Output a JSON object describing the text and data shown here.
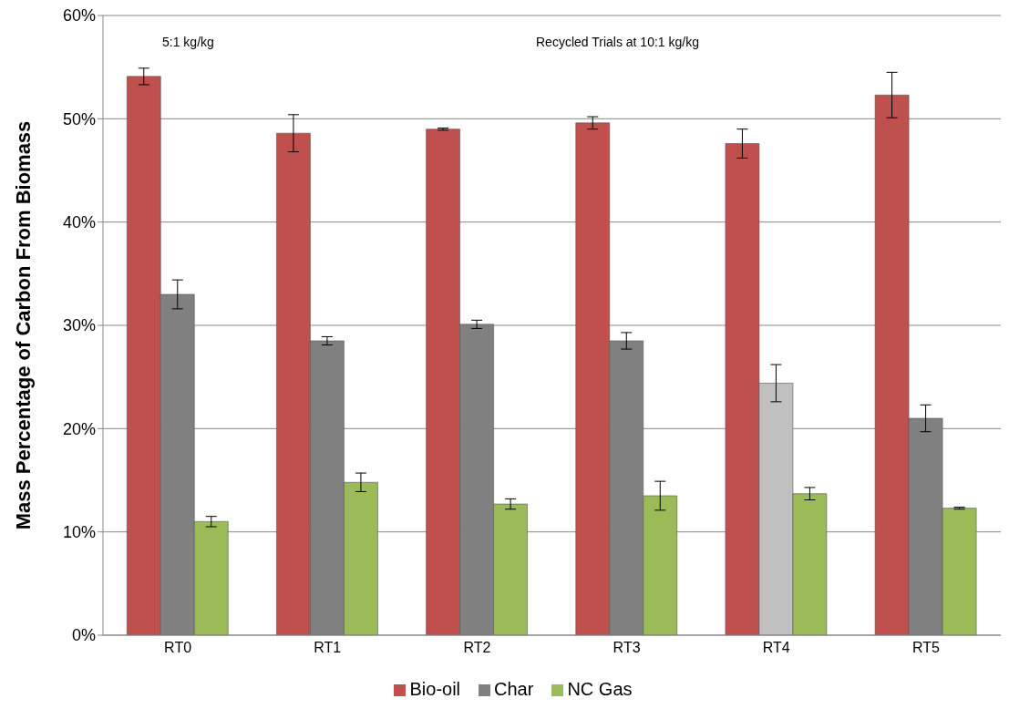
{
  "chart_data": {
    "type": "bar",
    "ylabel": "Mass Percentage of Carbon From Biomass",
    "categories": [
      "RT0",
      "RT1",
      "RT2",
      "RT3",
      "RT4",
      "RT5"
    ],
    "series": [
      {
        "name": "Bio-oil",
        "color": "#c0504d",
        "values": [
          54.1,
          48.6,
          49.0,
          49.6,
          47.6,
          52.3
        ],
        "errors": [
          0.8,
          1.8,
          0.1,
          0.6,
          1.4,
          2.2
        ]
      },
      {
        "name": "Char",
        "color": "#808080",
        "colors": [
          "#808080",
          "#808080",
          "#808080",
          "#808080",
          "#c0c0c0",
          "#808080"
        ],
        "values": [
          33.0,
          28.5,
          30.1,
          28.5,
          24.4,
          21.0
        ],
        "errors": [
          1.4,
          0.4,
          0.4,
          0.8,
          1.8,
          1.3
        ]
      },
      {
        "name": "NC Gas",
        "color": "#9bbb59",
        "values": [
          11.0,
          14.8,
          12.7,
          13.5,
          13.7,
          12.3
        ],
        "errors": [
          0.5,
          0.9,
          0.5,
          1.4,
          0.6,
          0.1
        ]
      }
    ],
    "ylim": [
      0,
      60
    ],
    "yticks": [
      {
        "value": 0,
        "label": "0%"
      },
      {
        "value": 10,
        "label": "10%"
      },
      {
        "value": 20,
        "label": "20%"
      },
      {
        "value": 30,
        "label": "30%"
      },
      {
        "value": 40,
        "label": "40%"
      },
      {
        "value": 50,
        "label": "50%"
      },
      {
        "value": 60,
        "label": "60%"
      }
    ],
    "annotations": [
      "5:1 kg/kg",
      "Recycled Trials at 10:1 kg/kg"
    ],
    "grid": "y",
    "legend": "bottom"
  }
}
